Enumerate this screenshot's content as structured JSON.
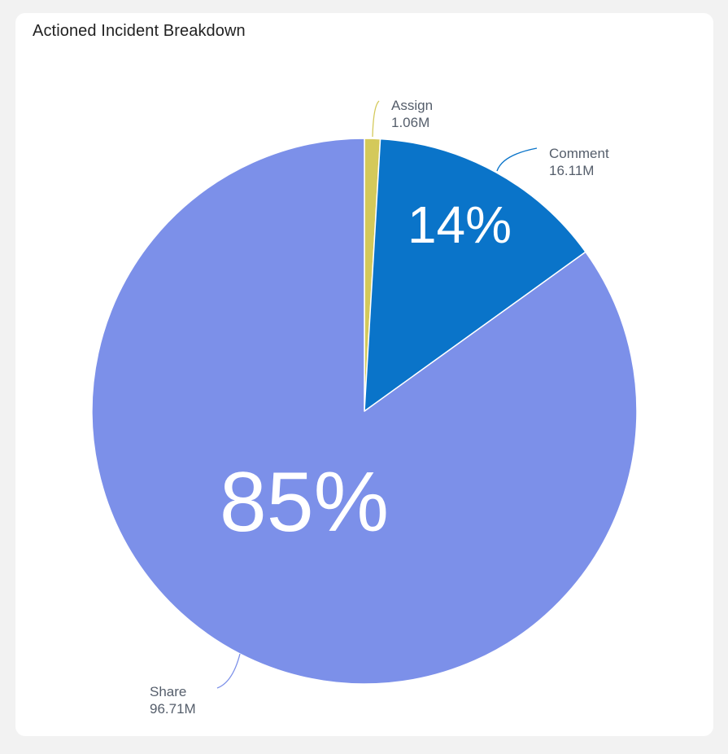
{
  "card": {
    "title": "Actioned Incident Breakdown"
  },
  "chart_data": {
    "type": "pie",
    "title": "Actioned Incident Breakdown",
    "slices": [
      {
        "name": "Assign",
        "value": 1.06,
        "value_label": "1.06M",
        "percent_label": "",
        "color": "#d4c95a"
      },
      {
        "name": "Comment",
        "value": 16.11,
        "value_label": "16.11M",
        "percent_label": "14%",
        "color": "#0a74c9"
      },
      {
        "name": "Share",
        "value": 96.71,
        "value_label": "96.71M",
        "percent_label": "85%",
        "color": "#7c90e9"
      }
    ],
    "start_angle": "12 o'clock",
    "direction": "clockwise",
    "legend": "none"
  }
}
